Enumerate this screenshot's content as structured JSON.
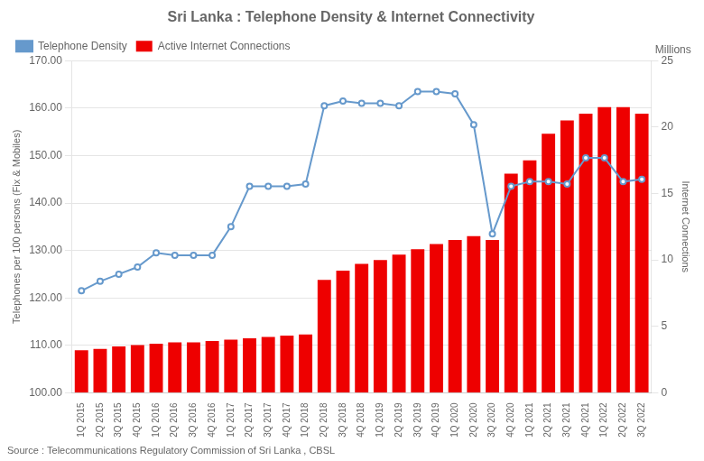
{
  "chart_data": {
    "type": "bar",
    "title": "Sri Lanka : Telephone Density & Internet Connectivity",
    "source": "Source : Telecommunications Regulatory Commission of Sri Lanka , CBSL",
    "annotations": [
      "Millions"
    ],
    "ylabel": "Telephones per 100 persons (Fix & Mobiles)",
    "y2label": "Internet Connections",
    "categories": [
      "1Q 2015",
      "2Q 2015",
      "3Q 2015",
      "4Q 2015",
      "1Q 2016",
      "2Q 2016",
      "3Q 2016",
      "4Q 2016",
      "1Q 2017",
      "2Q 2017",
      "3Q 2017",
      "4Q 2017",
      "1Q 2018",
      "2Q 2018",
      "3Q 2018",
      "4Q 2018",
      "1Q 2019",
      "2Q 2019",
      "3Q 2019",
      "4Q 2019",
      "1Q 2020",
      "2Q 2020",
      "3Q 2020",
      "4Q 2020",
      "1Q 2021",
      "2Q 2021",
      "3Q 2021",
      "4Q 2021",
      "1Q 2022",
      "2Q 2022",
      "3Q 2022"
    ],
    "series": [
      {
        "name": "Active Internet Connections",
        "type": "bar",
        "axis": "y2",
        "color": "#ee0000",
        "values": [
          3.2,
          3.3,
          3.5,
          3.6,
          3.7,
          3.8,
          3.8,
          3.9,
          4.0,
          4.1,
          4.2,
          4.3,
          4.4,
          8.5,
          9.2,
          9.7,
          10.0,
          10.4,
          10.8,
          11.2,
          11.5,
          11.8,
          11.5,
          16.5,
          17.5,
          19.5,
          20.5,
          21.0,
          21.5,
          21.5,
          21.0
        ]
      },
      {
        "name": "Telephone Density",
        "type": "line",
        "axis": "y",
        "color": "#6699cc",
        "marker": "circle",
        "values": [
          121.5,
          123.5,
          125.0,
          126.5,
          129.5,
          129.0,
          129.0,
          129.0,
          135.0,
          143.5,
          143.5,
          143.5,
          144.0,
          160.5,
          161.5,
          161.0,
          161.0,
          160.5,
          163.5,
          163.5,
          163.0,
          156.5,
          133.5,
          143.5,
          144.5,
          144.5,
          144.0,
          149.5,
          149.5,
          144.5,
          145.0
        ]
      }
    ],
    "ylim": [
      100.0,
      170.0
    ],
    "yticks": [
      {
        "value": 100,
        "label": "100.00"
      },
      {
        "value": 110,
        "label": "110.00"
      },
      {
        "value": 120,
        "label": "120.00"
      },
      {
        "value": 130,
        "label": "130.00"
      },
      {
        "value": 140,
        "label": "140.00"
      },
      {
        "value": 150,
        "label": "150.00"
      },
      {
        "value": 160,
        "label": "160.00"
      },
      {
        "value": 170,
        "label": "170.00"
      }
    ],
    "y2lim": [
      0,
      25
    ],
    "y2ticks": [
      0,
      5,
      10,
      15,
      20,
      25
    ],
    "grid": true,
    "legend": "upper left"
  }
}
